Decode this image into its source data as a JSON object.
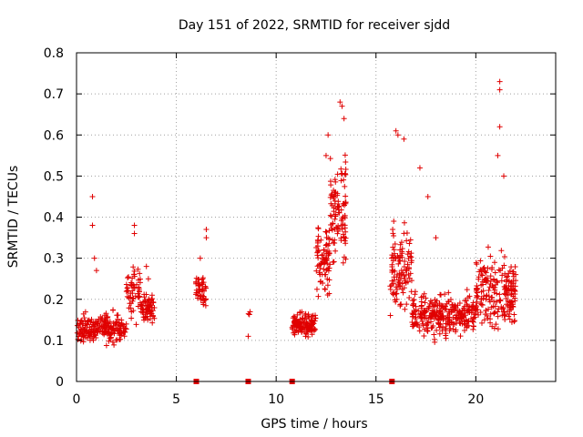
{
  "chart_data": {
    "type": "scatter",
    "title": "Day 151 of 2022, SRMTID for receiver sjdd",
    "xlabel": "GPS time / hours",
    "ylabel": "SRMTID / TECUs",
    "xlim": [
      0,
      24
    ],
    "ylim": [
      0,
      0.8
    ],
    "xticks": [
      0,
      5,
      10,
      15,
      20
    ],
    "yticks": [
      0,
      0.1,
      0.2,
      0.3,
      0.4,
      0.5,
      0.6,
      0.7,
      0.8
    ],
    "xtick_labels": [
      "0",
      "5",
      "10",
      "15",
      "20"
    ],
    "ytick_labels": [
      "0",
      "0.1",
      "0.2",
      "0.3",
      "0.4",
      "0.5",
      "0.6",
      "0.7",
      "0.8"
    ],
    "grid": true,
    "marker": "plus",
    "color": "#e00000",
    "zero_markers_x": [
      6.0,
      8.6,
      10.8,
      15.8
    ],
    "clusters": [
      {
        "x_range": [
          0.0,
          2.5
        ],
        "y_center": 0.13,
        "y_spread": 0.05,
        "count": 220,
        "outliers": [
          [
            0.8,
            0.45
          ],
          [
            0.8,
            0.38
          ],
          [
            0.9,
            0.3
          ],
          [
            1.0,
            0.27
          ]
        ]
      },
      {
        "x_range": [
          2.5,
          3.2
        ],
        "y_center": 0.22,
        "y_spread": 0.09,
        "count": 60,
        "outliers": [
          [
            2.9,
            0.38
          ],
          [
            2.9,
            0.36
          ]
        ]
      },
      {
        "x_range": [
          3.2,
          3.9
        ],
        "y_center": 0.18,
        "y_spread": 0.05,
        "count": 70,
        "outliers": [
          [
            3.5,
            0.28
          ],
          [
            3.6,
            0.25
          ]
        ]
      },
      {
        "x_range": [
          5.9,
          6.5
        ],
        "y_center": 0.22,
        "y_spread": 0.05,
        "count": 45,
        "outliers": [
          [
            6.5,
            0.37
          ],
          [
            6.5,
            0.35
          ],
          [
            6.2,
            0.3
          ]
        ]
      },
      {
        "x_range": [
          8.6,
          8.7
        ],
        "y_center": 0.16,
        "y_spread": 0.02,
        "count": 3,
        "outliers": [
          [
            8.6,
            0.11
          ]
        ]
      },
      {
        "x_range": [
          10.8,
          12.0
        ],
        "y_center": 0.14,
        "y_spread": 0.04,
        "count": 130,
        "outliers": []
      },
      {
        "x_range": [
          12.0,
          12.7
        ],
        "y_center": 0.3,
        "y_spread": 0.12,
        "count": 80,
        "outliers": [
          [
            12.6,
            0.6
          ],
          [
            12.5,
            0.55
          ]
        ]
      },
      {
        "x_range": [
          12.7,
          13.5
        ],
        "y_center": 0.42,
        "y_spread": 0.17,
        "count": 100,
        "outliers": [
          [
            13.2,
            0.68
          ],
          [
            13.3,
            0.67
          ],
          [
            13.4,
            0.64
          ]
        ]
      },
      {
        "x_range": [
          15.7,
          16.8
        ],
        "y_center": 0.28,
        "y_spread": 0.14,
        "count": 110,
        "outliers": [
          [
            16.0,
            0.61
          ],
          [
            16.1,
            0.6
          ],
          [
            16.4,
            0.59
          ]
        ]
      },
      {
        "x_range": [
          16.8,
          20.0
        ],
        "y_center": 0.16,
        "y_spread": 0.07,
        "count": 300,
        "outliers": [
          [
            17.2,
            0.52
          ],
          [
            17.6,
            0.45
          ],
          [
            18.0,
            0.35
          ]
        ]
      },
      {
        "x_range": [
          20.0,
          22.0
        ],
        "y_center": 0.22,
        "y_spread": 0.12,
        "count": 210,
        "outliers": [
          [
            21.2,
            0.73
          ],
          [
            21.2,
            0.71
          ],
          [
            21.2,
            0.62
          ],
          [
            21.1,
            0.55
          ],
          [
            21.4,
            0.5
          ]
        ]
      }
    ]
  }
}
